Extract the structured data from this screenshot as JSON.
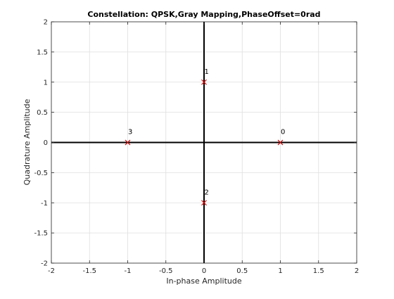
{
  "chart_data": {
    "type": "scatter",
    "title": "Constellation: QPSK,Gray Mapping,PhaseOffset=0rad",
    "xlabel": "In-phase Amplitude",
    "ylabel": "Quadrature Amplitude",
    "xlim": [
      -2,
      2
    ],
    "ylim": [
      -2,
      2
    ],
    "grid": true,
    "xticks": [
      -2,
      -1.5,
      -1,
      -0.5,
      0,
      0.5,
      1,
      1.5,
      2
    ],
    "yticks": [
      -2,
      -1.5,
      -1,
      -0.5,
      0,
      0.5,
      1,
      1.5,
      2
    ],
    "xtick_labels": [
      "-2",
      "-1.5",
      "-1",
      "-0.5",
      "0",
      "0.5",
      "1",
      "1.5",
      "2"
    ],
    "ytick_labels": [
      "-2",
      "-1.5",
      "-1",
      "-0.5",
      "0",
      "0.5",
      "1",
      "1.5",
      "2"
    ],
    "marker": "x",
    "marker_color": "#cc0000",
    "series": [
      {
        "points": [
          {
            "x": 1,
            "y": 0,
            "label": "0"
          },
          {
            "x": 0,
            "y": 1,
            "label": "1"
          },
          {
            "x": 0,
            "y": -1,
            "label": "2"
          },
          {
            "x": -1,
            "y": 0,
            "label": "3"
          }
        ]
      }
    ]
  }
}
